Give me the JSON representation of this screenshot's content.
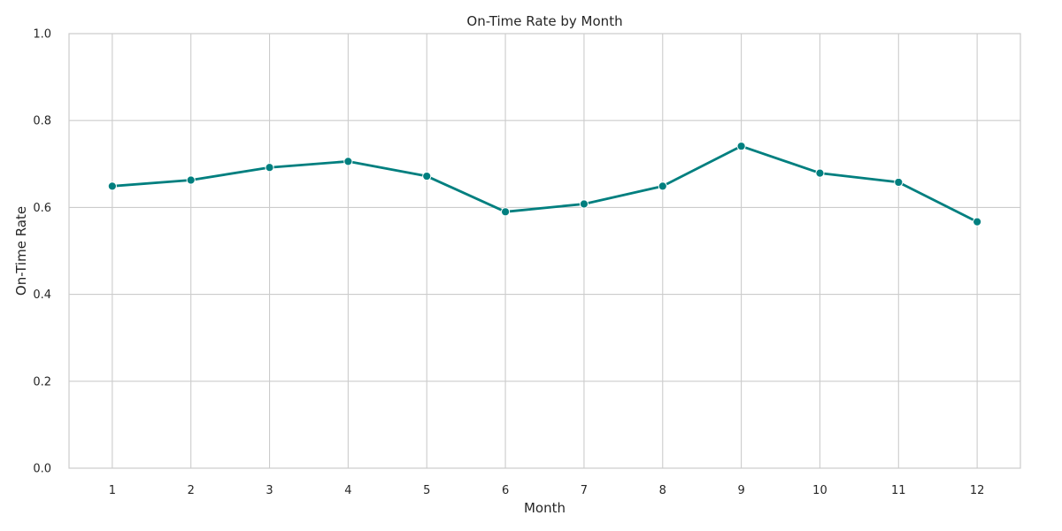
{
  "chart_data": {
    "type": "line",
    "title": "On-Time Rate by Month",
    "xlabel": "Month",
    "ylabel": "On-Time Rate",
    "x": [
      1,
      2,
      3,
      4,
      5,
      6,
      7,
      8,
      9,
      10,
      11,
      12
    ],
    "x_tick_labels": [
      "1",
      "2",
      "3",
      "4",
      "5",
      "6",
      "7",
      "8",
      "9",
      "10",
      "11",
      "12"
    ],
    "y_ticks": [
      0.0,
      0.2,
      0.4,
      0.6,
      0.8,
      1.0
    ],
    "y_tick_labels": [
      "0.0",
      "0.2",
      "0.4",
      "0.6",
      "0.8",
      "1.0"
    ],
    "ylim": [
      0,
      1
    ],
    "xlim": [
      0.45,
      12.55
    ],
    "grid": true,
    "series": [
      {
        "values": [
          0.649,
          0.663,
          0.692,
          0.706,
          0.672,
          0.59,
          0.608,
          0.649,
          0.741,
          0.679,
          0.658,
          0.567
        ],
        "color": "#007f7f",
        "marker": "circle"
      }
    ]
  }
}
